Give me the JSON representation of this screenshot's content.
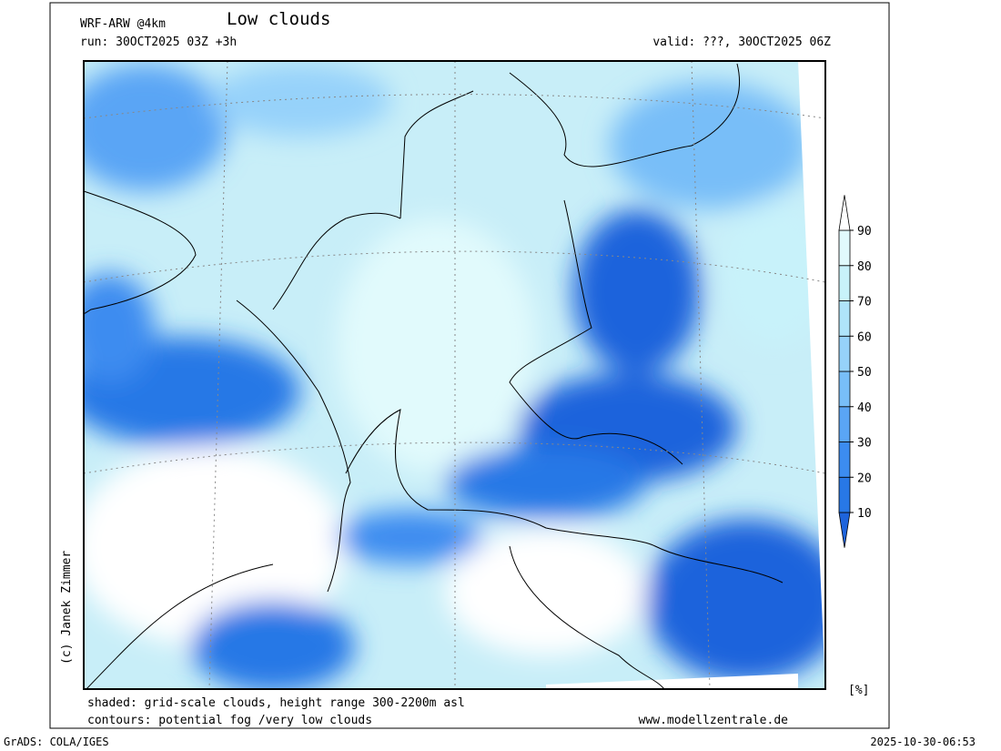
{
  "header": {
    "model": "WRF-ARW @4km",
    "title": "Low clouds",
    "run": "run: 30OCT2025 03Z +3h",
    "valid": "valid: ???, 30OCT2025 06Z"
  },
  "colorbar": {
    "ticks": [
      10,
      20,
      30,
      40,
      50,
      60,
      70,
      80,
      90
    ],
    "colors": [
      "#1e64dc",
      "#2878e6",
      "#3c8cf0",
      "#5aa5f5",
      "#78bef8",
      "#96d2fa",
      "#afe4fa",
      "#c8f2fa",
      "#e1fafc",
      "#ffffff"
    ],
    "unit": "[%]"
  },
  "footer": {
    "shaded": "shaded: grid-scale clouds, height range 300-2200m asl",
    "contours": "contours: potential fog /very low clouds",
    "website": "www.modellzentrale.de",
    "copyright": "(c) Janek Zimmer"
  },
  "bottom_bar": {
    "software": "GrADS: COLA/IGES",
    "timestamp": "2025-10-30-06:53"
  }
}
